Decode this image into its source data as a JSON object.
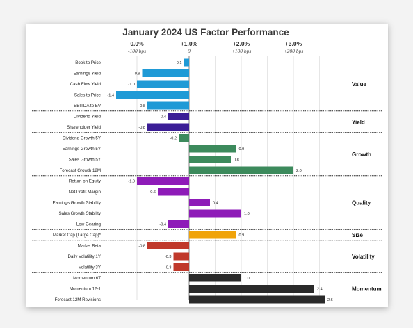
{
  "chart_data": {
    "type": "bar",
    "orientation": "horizontal",
    "title": "January 2024 US Factor Performance",
    "x_ticks": [
      {
        "value": 0.0,
        "label": "0.0%",
        "bps": "-100 bps"
      },
      {
        "value": 1.0,
        "label": "+1.0%",
        "bps": "0"
      },
      {
        "value": 2.0,
        "label": "+2.0%",
        "bps": "+100 bps"
      },
      {
        "value": 3.0,
        "label": "+3.0%",
        "bps": "+200 bps"
      }
    ],
    "value_axis": {
      "baseline": 0,
      "min": -1.5,
      "max": 2.7,
      "unit": "relative to market"
    },
    "grid": true,
    "groups": [
      {
        "name": "Value",
        "color": "#1f9ad6",
        "items": [
          {
            "label": "Book to Price",
            "value": -0.1,
            "value_label": "-0.1"
          },
          {
            "label": "Earnings Yield",
            "value": -0.9,
            "value_label": "-0.9"
          },
          {
            "label": "Cash Flow Yield",
            "value": -1.0,
            "value_label": "-1.0"
          },
          {
            "label": "Sales to Price",
            "value": -1.4,
            "value_label": "-1.4"
          },
          {
            "label": "EBITDA to EV",
            "value": -0.8,
            "value_label": "-0.8"
          }
        ]
      },
      {
        "name": "Yield",
        "color": "#3b1e96",
        "items": [
          {
            "label": "Dividend Yield",
            "value": -0.4,
            "value_label": "-0.4"
          },
          {
            "label": "Shareholder Yield",
            "value": -0.8,
            "value_label": "-0.8"
          }
        ]
      },
      {
        "name": "Growth",
        "color": "#3c8a5c",
        "items": [
          {
            "label": "Dividend Growth 5Y",
            "value": -0.2,
            "value_label": "-0.2"
          },
          {
            "label": "Earnings Growth 5Y",
            "value": 0.9,
            "value_label": "0.9"
          },
          {
            "label": "Sales Growth 5Y",
            "value": 0.8,
            "value_label": "0.8"
          },
          {
            "label": "Forecast Growth 12M",
            "value": 2.0,
            "value_label": "2.0"
          }
        ]
      },
      {
        "name": "Quality",
        "color": "#8e1bb8",
        "items": [
          {
            "label": "Return on Equity",
            "value": -1.0,
            "value_label": "-1.0"
          },
          {
            "label": "Net Profit Margin",
            "value": -0.6,
            "value_label": "-0.6"
          },
          {
            "label": "Earnings Growth Stability",
            "value": 0.4,
            "value_label": "0.4"
          },
          {
            "label": "Sales Growth Stability",
            "value": 1.0,
            "value_label": "1.0"
          },
          {
            "label": "Low Gearing",
            "value": -0.4,
            "value_label": "-0.4"
          }
        ]
      },
      {
        "name": "Size",
        "color": "#f0a30a",
        "items": [
          {
            "label": "Market Cap (Large Cap)*",
            "value": 0.9,
            "value_label": "0.9"
          }
        ]
      },
      {
        "name": "Volatility",
        "color": "#c0392b",
        "items": [
          {
            "label": "Market Beta",
            "value": -0.8,
            "value_label": "-0.8"
          },
          {
            "label": "Daily Volatility 1Y",
            "value": -0.3,
            "value_label": "-0.3"
          },
          {
            "label": "Volatility 3Y",
            "value": -0.3,
            "value_label": "-0.3"
          }
        ]
      },
      {
        "name": "Momentum",
        "color": "#2a2a2a",
        "items": [
          {
            "label": "Momentum 6T",
            "value": 1.0,
            "value_label": "1.0"
          },
          {
            "label": "Momentum 12-1",
            "value": 2.4,
            "value_label": "2.4"
          },
          {
            "label": "Forecast 12M Revisions",
            "value": 2.6,
            "value_label": "2.6"
          }
        ]
      }
    ]
  }
}
